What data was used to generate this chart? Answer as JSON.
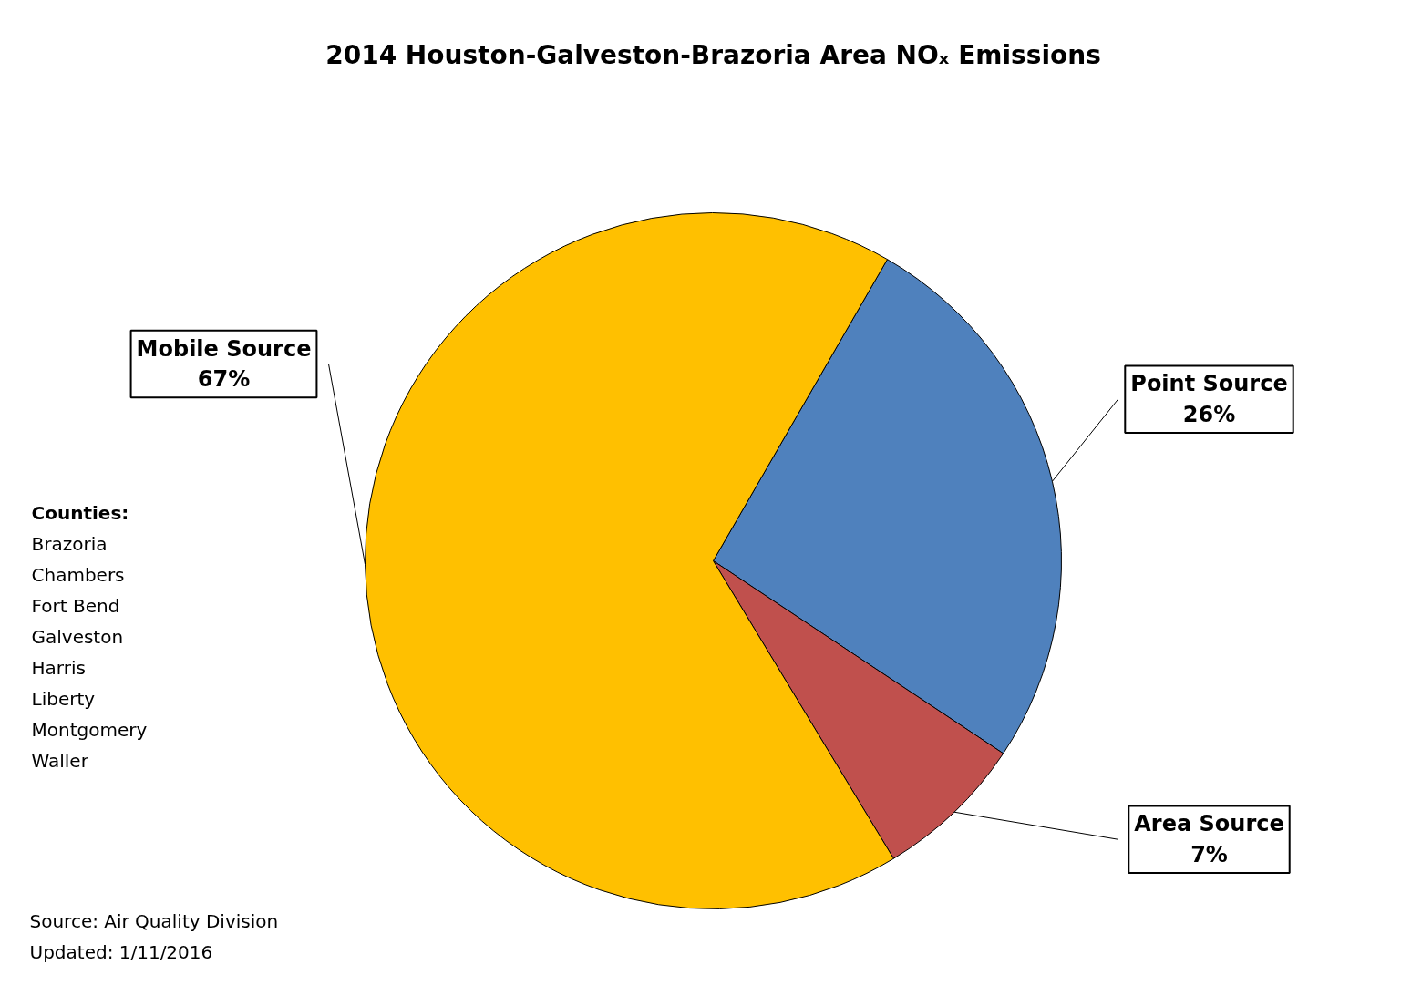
{
  "chart_data": {
    "type": "pie",
    "title": "2014 Houston-Galveston-Brazoria Area NOₓ Emissions",
    "categories": [
      "Point Source",
      "Area Source",
      "Mobile Source"
    ],
    "values": [
      26,
      7,
      67
    ],
    "value_labels": [
      "26%",
      "7%",
      "67%"
    ],
    "colors": [
      "#4f81bd",
      "#c0504d",
      "#ffc000"
    ],
    "annotations": [
      "Counties:",
      "Brazoria",
      "Chambers",
      "Fort Bend",
      "Galveston",
      "Harris",
      "Liberty",
      "Montgomery",
      "Waller",
      "Source: Air Quality Division",
      "Updated: 1/11/2016"
    ]
  }
}
